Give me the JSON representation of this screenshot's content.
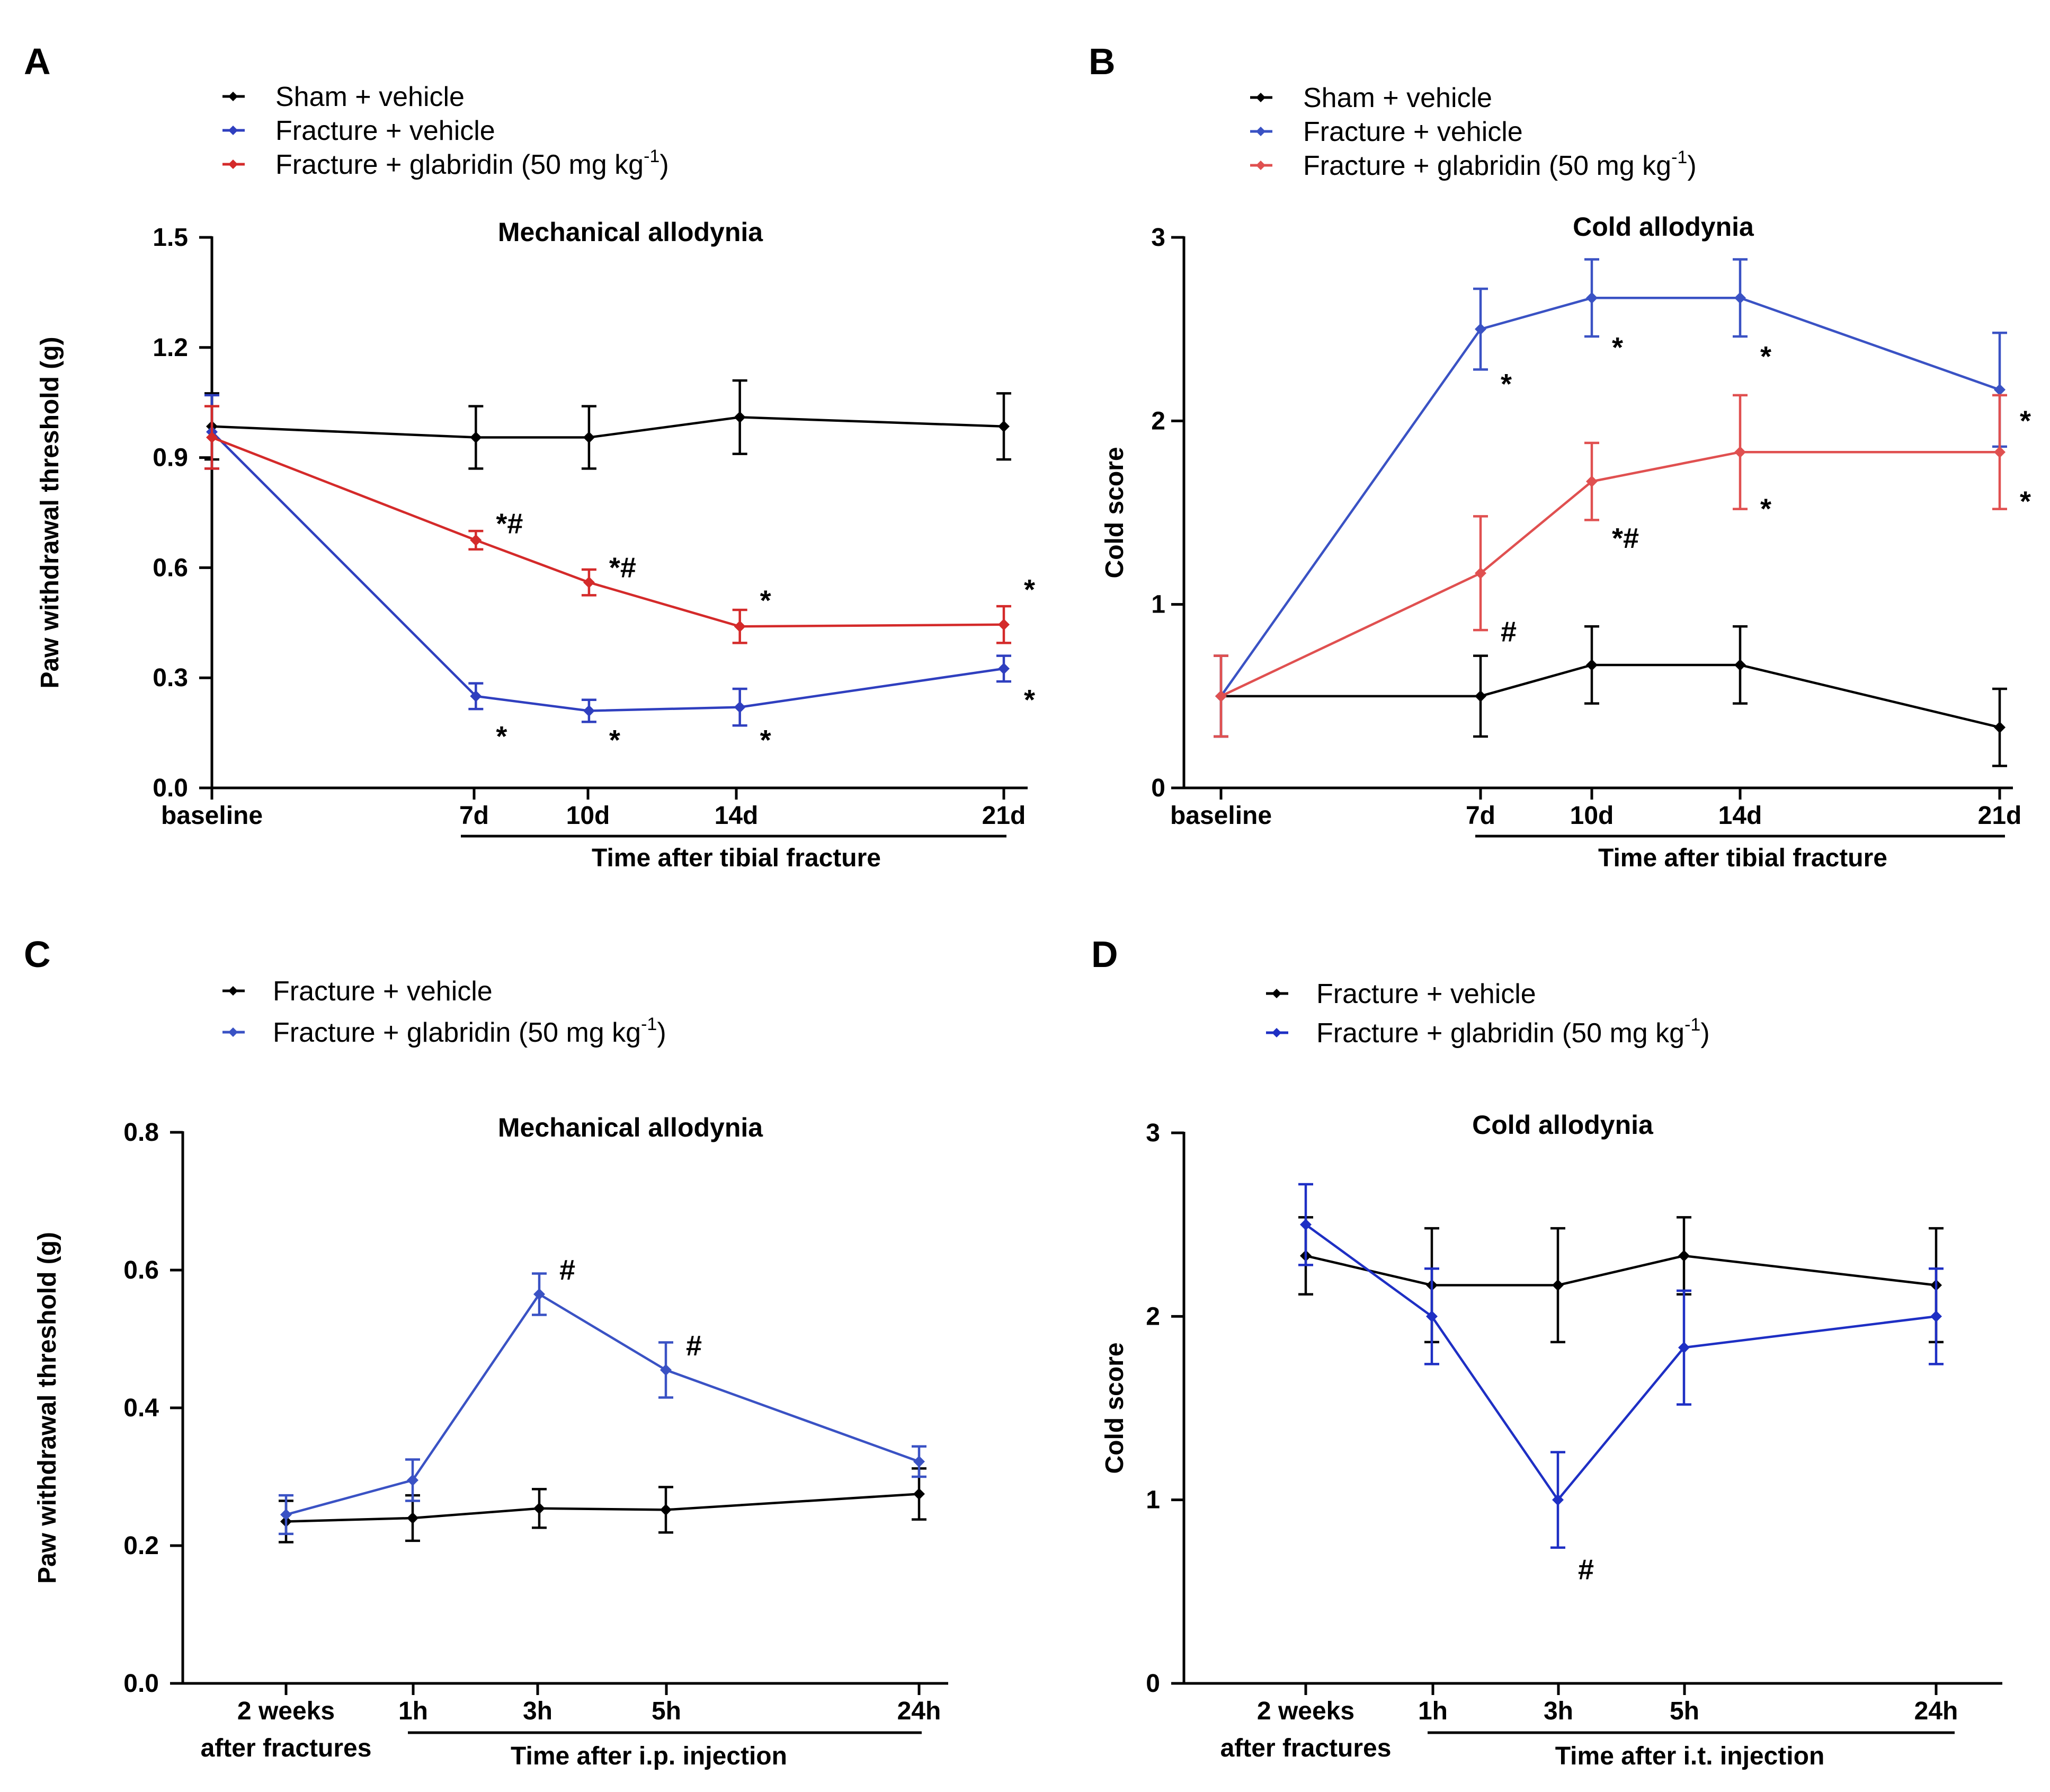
{
  "chart_data": [
    {
      "panel": "A",
      "type": "line",
      "title": "Mechanical allodynia",
      "ylabel": "Paw withdrawal threshold (g)",
      "xlabel": "Time after tibial fracture",
      "ylim": [
        0,
        1.5
      ],
      "yticks": [
        "0.0",
        "0.3",
        "0.6",
        "0.9",
        "1.2",
        "1.5"
      ],
      "categories": [
        "baseline",
        "7d",
        "10d",
        "14d",
        "21d"
      ],
      "x": [
        0,
        7,
        10,
        14,
        21
      ],
      "legend": [
        {
          "base": "Sham + vehicle",
          "sup": ""
        },
        {
          "base": "Fracture + vehicle",
          "sup": ""
        },
        {
          "base": "Fracture + glabridin (50 mg kg",
          "sup": "-1",
          "close": ")"
        }
      ],
      "series": [
        {
          "name": "Sham + vehicle",
          "color": "#000000",
          "values": [
            0.985,
            0.955,
            0.955,
            1.01,
            0.985
          ],
          "errors": [
            0.09,
            0.085,
            0.085,
            0.1,
            0.09
          ]
        },
        {
          "name": "Fracture + vehicle",
          "color": "#2f3fbf",
          "values": [
            0.97,
            0.25,
            0.21,
            0.22,
            0.325
          ],
          "errors": [
            0.1,
            0.035,
            0.03,
            0.05,
            0.035
          ]
        },
        {
          "name": "Fracture + glabridin (50 mg kg-1)",
          "color": "#d42a2a",
          "values": [
            0.955,
            0.675,
            0.56,
            0.44,
            0.445
          ],
          "errors": [
            0.085,
            0.025,
            0.035,
            0.045,
            0.05
          ]
        }
      ],
      "annotations": [
        {
          "text": "*#",
          "x": 7,
          "y": 0.72
        },
        {
          "text": "*#",
          "x": 10,
          "y": 0.6
        },
        {
          "text": "*",
          "x": 14,
          "y": 0.51
        },
        {
          "text": "*",
          "x": 21,
          "y": 0.54
        },
        {
          "text": "*",
          "x": 7,
          "y": 0.14
        },
        {
          "text": "*",
          "x": 10,
          "y": 0.13
        },
        {
          "text": "*",
          "x": 14,
          "y": 0.13
        },
        {
          "text": "*",
          "x": 21,
          "y": 0.24
        }
      ]
    },
    {
      "panel": "B",
      "type": "line",
      "title": "Cold allodynia",
      "ylabel": "Cold score",
      "xlabel": "Time after tibial fracture",
      "ylim": [
        0,
        3
      ],
      "yticks": [
        "0",
        "1",
        "2",
        "3"
      ],
      "categories": [
        "baseline",
        "7d",
        "10d",
        "14d",
        "21d"
      ],
      "x": [
        0,
        7,
        10,
        14,
        21
      ],
      "legend": [
        {
          "base": "Sham + vehicle",
          "sup": ""
        },
        {
          "base": "Fracture + vehicle",
          "sup": ""
        },
        {
          "base": "Fracture + glabridin (50 mg kg",
          "sup": "-1",
          "close": ")"
        }
      ],
      "series": [
        {
          "name": "Sham + vehicle",
          "color": "#000000",
          "values": [
            0.5,
            0.5,
            0.67,
            0.67,
            0.33
          ],
          "errors": [
            0.22,
            0.22,
            0.21,
            0.21,
            0.21
          ]
        },
        {
          "name": "Fracture + vehicle",
          "color": "#3a52c4",
          "values": [
            0.5,
            2.5,
            2.67,
            2.67,
            2.17
          ],
          "errors": [
            0.22,
            0.22,
            0.21,
            0.21,
            0.31
          ]
        },
        {
          "name": "Fracture + glabridin (50 mg kg-1)",
          "color": "#e05050",
          "values": [
            0.5,
            1.17,
            1.67,
            1.83,
            1.83
          ],
          "errors": [
            0.22,
            0.31,
            0.21,
            0.31,
            0.31
          ]
        }
      ],
      "annotations": [
        {
          "text": "*",
          "x": 7,
          "y": 2.2
        },
        {
          "text": "*",
          "x": 10,
          "y": 2.4
        },
        {
          "text": "*",
          "x": 14,
          "y": 2.35
        },
        {
          "text": "*",
          "x": 21,
          "y": 2.0
        },
        {
          "text": "*#",
          "x": 10,
          "y": 1.36
        },
        {
          "text": "*",
          "x": 14,
          "y": 1.52
        },
        {
          "text": "*",
          "x": 21,
          "y": 1.56
        },
        {
          "text": "#",
          "x": 7,
          "y": 0.85
        }
      ]
    },
    {
      "panel": "C",
      "type": "line",
      "title": "Mechanical allodynia",
      "ylabel": "Paw withdrawal threshold (g)",
      "xlabel": "Time after i.p. injection",
      "ylim": [
        0,
        0.8
      ],
      "yticks": [
        "0.0",
        "0.2",
        "0.4",
        "0.6",
        "0.8"
      ],
      "categories": [
        "2 weeks|after fractures",
        "1h",
        "3h",
        "5h",
        "24h"
      ],
      "x": [
        0,
        1,
        2,
        3,
        5
      ],
      "legend": [
        {
          "base": "Fracture + vehicle",
          "sup": ""
        },
        {
          "base": "Fracture + glabridin (50 mg kg",
          "sup": "-1",
          "close": ")"
        }
      ],
      "series": [
        {
          "name": "Fracture + vehicle",
          "color": "#000000",
          "values": [
            0.235,
            0.24,
            0.254,
            0.252,
            0.275
          ],
          "errors": [
            0.03,
            0.033,
            0.028,
            0.033,
            0.037
          ]
        },
        {
          "name": "Fracture + glabridin (50 mg kg-1)",
          "color": "#3a52c4",
          "values": [
            0.245,
            0.295,
            0.565,
            0.455,
            0.322
          ],
          "errors": [
            0.028,
            0.03,
            0.03,
            0.04,
            0.022
          ]
        }
      ],
      "annotations": [
        {
          "text": "#",
          "x": 2,
          "y": 0.6
        },
        {
          "text": "#",
          "x": 3,
          "y": 0.49
        }
      ]
    },
    {
      "panel": "D",
      "type": "line",
      "title": "Cold allodynia",
      "ylabel": "Cold score",
      "xlabel": "Time after i.t. injection",
      "ylim": [
        0,
        3
      ],
      "yticks": [
        "0",
        "1",
        "2",
        "3"
      ],
      "categories": [
        "2 weeks|after fractures",
        "1h",
        "3h",
        "5h",
        "24h"
      ],
      "x": [
        0,
        1,
        2,
        3,
        5
      ],
      "legend": [
        {
          "base": "Fracture + vehicle",
          "sup": ""
        },
        {
          "base": "Fracture + glabridin (50 mg kg",
          "sup": "-1",
          "close": ")"
        }
      ],
      "series": [
        {
          "name": "Fracture + vehicle",
          "color": "#000000",
          "values": [
            2.33,
            2.17,
            2.17,
            2.33,
            2.17
          ],
          "errors": [
            0.21,
            0.31,
            0.31,
            0.21,
            0.31
          ]
        },
        {
          "name": "Fracture + glabridin (50 mg kg-1)",
          "color": "#1e2fc4",
          "values": [
            2.5,
            2.0,
            1.0,
            1.83,
            2.0
          ],
          "errors": [
            0.22,
            0.26,
            0.26,
            0.31,
            0.26
          ]
        }
      ],
      "annotations": [
        {
          "text": "#",
          "x": 2,
          "y": 0.62
        }
      ]
    }
  ]
}
